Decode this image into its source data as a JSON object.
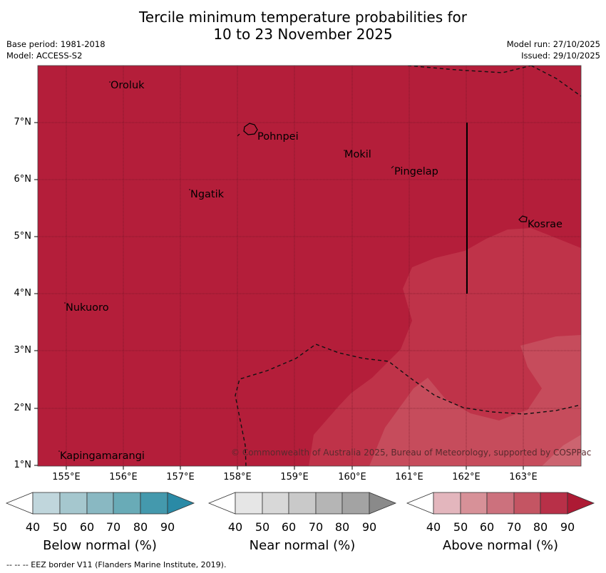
{
  "title_line1": "Tercile minimum temperature probabilities for",
  "title_line2": "10 to 23 November 2025",
  "meta": {
    "base_period": "Base period: 1981-2018",
    "model": "Model: ACCESS-S2",
    "model_run": "Model run: 27/10/2025",
    "issued": "Issued: 29/10/2025"
  },
  "map": {
    "lat_ticks": [
      "7°N",
      "6°N",
      "5°N",
      "4°N",
      "3°N",
      "2°N",
      "1°N"
    ],
    "lon_ticks": [
      "155°E",
      "156°E",
      "157°E",
      "158°E",
      "159°E",
      "160°E",
      "161°E",
      "162°E",
      "163°E"
    ],
    "places": [
      "Oroluk",
      "Pohnpei",
      "Mokil",
      "Pingelap",
      "Ngatik",
      "Kosrae",
      "Nukuoro",
      "Kapingamarangi"
    ],
    "copyright": "© Commonwealth of Australia 2025, Bureau of Meteorology, supported by COSPPac",
    "colors": {
      "above_80": "#b41e3a",
      "above_70": "#bf3349",
      "above_60": "#c64c5c",
      "above_50": "#cc6470"
    }
  },
  "colorbars": [
    {
      "label": "Below normal (%)",
      "ticks": [
        "40",
        "50",
        "60",
        "70",
        "80",
        "90"
      ],
      "colors": [
        "#c0d6dc",
        "#a5c7ce",
        "#89b8c2",
        "#69abb7",
        "#4499ad",
        "#2a8aa6"
      ]
    },
    {
      "label": "Near normal (%)",
      "ticks": [
        "40",
        "50",
        "60",
        "70",
        "80",
        "90"
      ],
      "colors": [
        "#e6e6e6",
        "#d8d8d8",
        "#c9c9c9",
        "#b5b5b5",
        "#a3a3a3",
        "#8a8a8a"
      ]
    },
    {
      "label": "Above normal (%)",
      "ticks": [
        "40",
        "50",
        "60",
        "70",
        "80",
        "90"
      ],
      "colors": [
        "#e3b6bd",
        "#d79198",
        "#cc717d",
        "#c45563",
        "#b83048",
        "#ad1a34"
      ]
    }
  ],
  "footer": "--  --  -- EEZ border V11 (Flanders Marine Institute, 2019)."
}
